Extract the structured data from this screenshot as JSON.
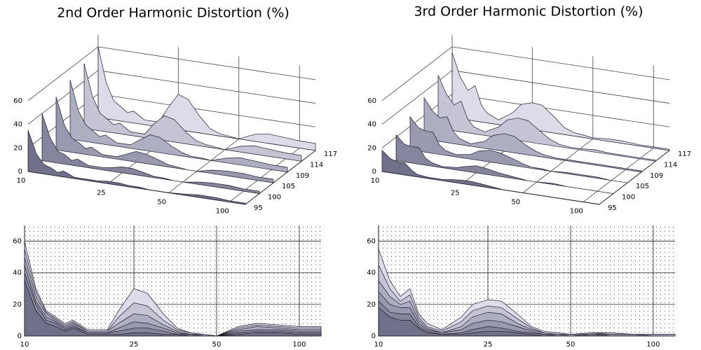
{
  "chart_data": [
    {
      "type": "waterfall",
      "title": "2nd Order Harmonic Distortion (%)",
      "x": [
        10,
        11,
        12,
        13,
        14,
        15,
        17,
        20,
        22,
        25,
        28,
        32,
        36,
        40,
        45,
        50,
        60,
        70,
        85,
        100,
        120
      ],
      "xlim": [
        10,
        120
      ],
      "xticks": [
        10,
        25,
        50,
        100
      ],
      "log_x": true,
      "ylim": [
        0,
        70
      ],
      "yticks": [
        0,
        20,
        40,
        60
      ],
      "grid": true,
      "series": [
        {
          "name": "95",
          "color": "#70708a",
          "values": [
            35,
            16,
            8,
            6,
            3,
            5,
            1,
            1,
            1,
            2,
            2,
            1,
            1,
            0,
            0,
            0,
            1,
            2,
            2,
            1,
            1
          ]
        },
        {
          "name": "100",
          "color": "#84849c",
          "values": [
            40,
            20,
            10,
            8,
            4,
            6,
            2,
            2,
            3,
            5,
            5,
            3,
            1,
            1,
            0,
            0,
            2,
            3,
            3,
            2,
            2
          ]
        },
        {
          "name": "105",
          "color": "#9898ae",
          "values": [
            45,
            22,
            12,
            9,
            5,
            7,
            2,
            2,
            5,
            9,
            8,
            5,
            2,
            1,
            0,
            0,
            3,
            4,
            4,
            3,
            3
          ]
        },
        {
          "name": "109",
          "color": "#aeaec2",
          "values": [
            50,
            25,
            14,
            10,
            6,
            8,
            3,
            3,
            8,
            14,
            13,
            7,
            3,
            1,
            1,
            0,
            4,
            6,
            5,
            4,
            4
          ]
        },
        {
          "name": "114",
          "color": "#c4c4d4",
          "values": [
            55,
            28,
            15,
            11,
            7,
            9,
            3,
            3,
            12,
            21,
            19,
            10,
            4,
            2,
            1,
            0,
            5,
            7,
            6,
            5,
            5
          ]
        },
        {
          "name": "117",
          "color": "#dcdce8",
          "values": [
            60,
            30,
            16,
            12,
            8,
            10,
            4,
            4,
            16,
            30,
            27,
            14,
            5,
            2,
            1,
            0,
            6,
            8,
            7,
            6,
            6
          ]
        }
      ]
    },
    {
      "type": "waterfall",
      "title": "3rd Order Harmonic Distortion (%)",
      "x": [
        10,
        11,
        12,
        13,
        14,
        15,
        17,
        20,
        22,
        25,
        28,
        32,
        36,
        40,
        45,
        50,
        60,
        70,
        85,
        100,
        120
      ],
      "xlim": [
        10,
        120
      ],
      "xticks": [
        10,
        25,
        50,
        100
      ],
      "log_x": true,
      "ylim": [
        0,
        70
      ],
      "yticks": [
        0,
        20,
        40,
        60
      ],
      "grid": true,
      "series": [
        {
          "name": "95",
          "color": "#70708a",
          "values": [
            18,
            12,
            10,
            10,
            5,
            2,
            1,
            1,
            2,
            3,
            3,
            2,
            1,
            0,
            0,
            0,
            0,
            0,
            0,
            0,
            0
          ]
        },
        {
          "name": "100",
          "color": "#84849c",
          "values": [
            22,
            15,
            14,
            14,
            6,
            3,
            1,
            2,
            4,
            6,
            5,
            3,
            2,
            1,
            0,
            0,
            1,
            0,
            0,
            0,
            0
          ]
        },
        {
          "name": "105",
          "color": "#9898ae",
          "values": [
            28,
            20,
            18,
            18,
            8,
            4,
            2,
            4,
            8,
            10,
            9,
            6,
            3,
            1,
            1,
            0,
            1,
            1,
            1,
            0,
            0
          ]
        },
        {
          "name": "109",
          "color": "#aeaec2",
          "values": [
            35,
            25,
            20,
            22,
            10,
            5,
            2,
            6,
            12,
            15,
            14,
            8,
            4,
            2,
            1,
            1,
            1,
            1,
            1,
            1,
            1
          ]
        },
        {
          "name": "114",
          "color": "#c4c4d4",
          "values": [
            45,
            30,
            22,
            26,
            12,
            6,
            3,
            9,
            16,
            19,
            18,
            11,
            5,
            2,
            1,
            1,
            2,
            1,
            1,
            1,
            1
          ]
        },
        {
          "name": "117",
          "color": "#dcdce8",
          "values": [
            55,
            35,
            25,
            30,
            14,
            8,
            4,
            12,
            20,
            23,
            22,
            14,
            6,
            3,
            2,
            1,
            2,
            2,
            1,
            1,
            1
          ]
        }
      ]
    }
  ]
}
